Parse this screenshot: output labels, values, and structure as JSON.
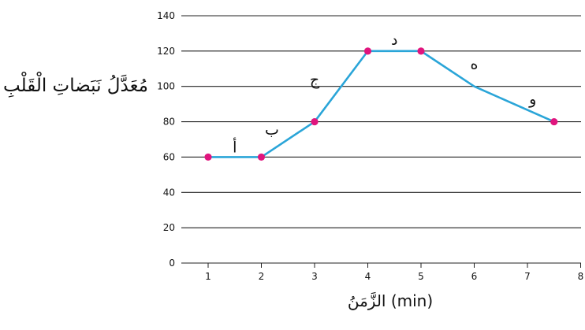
{
  "chart_data": {
    "type": "line",
    "title": "",
    "ylabel": "مُعَدَّلُ نَبَضاتِ الْقَلْبِ",
    "xlabel": "الزَّمَنُ (min)",
    "xlim": [
      1,
      8
    ],
    "ylim": [
      0,
      140
    ],
    "x_ticks": [
      1,
      2,
      3,
      4,
      5,
      6,
      7,
      8
    ],
    "y_ticks": [
      0,
      20,
      40,
      60,
      80,
      100,
      120,
      140
    ],
    "grid": "horizontal",
    "legend": "none",
    "series": [
      {
        "x": [
          1,
          2,
          3,
          4,
          5,
          6,
          7.5
        ],
        "y": [
          60,
          60,
          80,
          120,
          120,
          100,
          80
        ],
        "marker_points": [
          [
            1,
            60
          ],
          [
            2,
            60
          ],
          [
            3,
            80
          ],
          [
            4,
            120
          ],
          [
            5,
            120
          ],
          [
            7.5,
            80
          ]
        ]
      }
    ],
    "segment_labels": [
      {
        "text": "أ",
        "x": 1.5,
        "y": 60
      },
      {
        "text": "ب",
        "x": 2.2,
        "y": 70
      },
      {
        "text": "ج",
        "x": 3,
        "y": 100
      },
      {
        "text": "د",
        "x": 4.5,
        "y": 120
      },
      {
        "text": "ه",
        "x": 6,
        "y": 110
      },
      {
        "text": "و",
        "x": 7.1,
        "y": 90
      }
    ],
    "colors": {
      "line": "#2aa5d8",
      "marker": "#e0157e",
      "grid": "#222222",
      "text": "#111111"
    }
  }
}
